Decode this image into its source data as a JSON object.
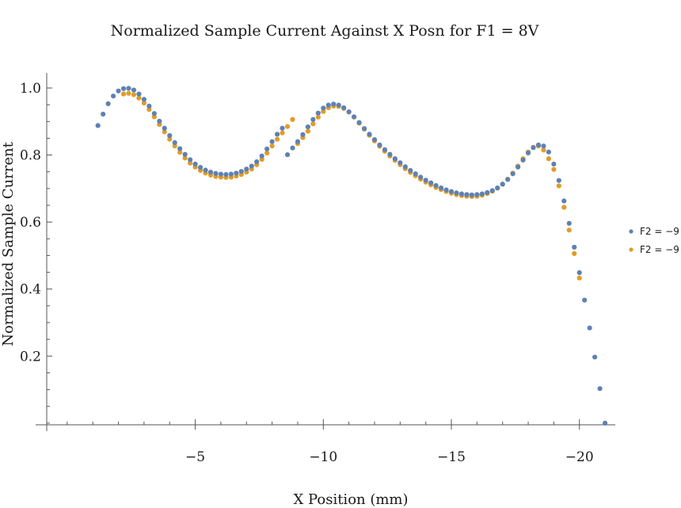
{
  "chart_data": {
    "type": "scatter",
    "title": "Normalized Sample Current Against X Posn for F1 = 8V",
    "xlabel": "X Position (mm)",
    "ylabel": "Normalized Sample Current",
    "xlim": [
      0.8,
      -21.4
    ],
    "ylim": [
      -0.005,
      1.045
    ],
    "xticks": [
      {
        "value": -5,
        "label": "−5"
      },
      {
        "value": -10,
        "label": "−10"
      },
      {
        "value": -15,
        "label": "−15"
      },
      {
        "value": -20,
        "label": "−20"
      }
    ],
    "yticks": [
      {
        "value": 0.2,
        "label": "0.2"
      },
      {
        "value": 0.4,
        "label": "0.4"
      },
      {
        "value": 0.6,
        "label": "0.6"
      },
      {
        "value": 0.8,
        "label": "0.8"
      },
      {
        "value": 1.0,
        "label": "1.0"
      }
    ],
    "grid": false,
    "legend_position": "right",
    "series": [
      {
        "name": "F2 = −9",
        "color": "#5E81B5",
        "points": [
          [
            -1.2,
            0.888
          ],
          [
            -1.4,
            0.922
          ],
          [
            -1.6,
            0.953
          ],
          [
            -1.8,
            0.976
          ],
          [
            -2.0,
            0.991
          ],
          [
            -2.2,
            0.998
          ],
          [
            -2.4,
            0.999
          ],
          [
            -2.6,
            0.994
          ],
          [
            -2.8,
            0.982
          ],
          [
            -3.0,
            0.966
          ],
          [
            -3.2,
            0.946
          ],
          [
            -3.4,
            0.924
          ],
          [
            -3.6,
            0.901
          ],
          [
            -3.8,
            0.88
          ],
          [
            -4.0,
            0.858
          ],
          [
            -4.2,
            0.837
          ],
          [
            -4.4,
            0.819
          ],
          [
            -4.6,
            0.802
          ],
          [
            -4.8,
            0.786
          ],
          [
            -5.0,
            0.773
          ],
          [
            -5.2,
            0.763
          ],
          [
            -5.4,
            0.755
          ],
          [
            -5.6,
            0.749
          ],
          [
            -5.8,
            0.745
          ],
          [
            -6.0,
            0.743
          ],
          [
            -6.2,
            0.742
          ],
          [
            -6.4,
            0.743
          ],
          [
            -6.6,
            0.746
          ],
          [
            -6.8,
            0.751
          ],
          [
            -7.0,
            0.758
          ],
          [
            -7.2,
            0.767
          ],
          [
            -7.4,
            0.78
          ],
          [
            -7.6,
            0.797
          ],
          [
            -7.8,
            0.818
          ],
          [
            -8.0,
            0.84
          ],
          [
            -8.2,
            0.862
          ],
          [
            -8.4,
            0.88
          ],
          [
            -8.6,
            0.801
          ],
          [
            -8.8,
            0.821
          ],
          [
            -9.0,
            0.84
          ],
          [
            -9.2,
            0.861
          ],
          [
            -9.4,
            0.884
          ],
          [
            -9.6,
            0.906
          ],
          [
            -9.8,
            0.925
          ],
          [
            -10.0,
            0.94
          ],
          [
            -10.2,
            0.949
          ],
          [
            -10.4,
            0.952
          ],
          [
            -10.6,
            0.949
          ],
          [
            -10.8,
            0.941
          ],
          [
            -11.0,
            0.929
          ],
          [
            -11.2,
            0.914
          ],
          [
            -11.4,
            0.897
          ],
          [
            -11.6,
            0.879
          ],
          [
            -11.8,
            0.862
          ],
          [
            -12.0,
            0.846
          ],
          [
            -12.2,
            0.83
          ],
          [
            -12.4,
            0.816
          ],
          [
            -12.6,
            0.802
          ],
          [
            -12.8,
            0.789
          ],
          [
            -13.0,
            0.777
          ],
          [
            -13.2,
            0.765
          ],
          [
            -13.4,
            0.754
          ],
          [
            -13.6,
            0.744
          ],
          [
            -13.8,
            0.734
          ],
          [
            -14.0,
            0.725
          ],
          [
            -14.2,
            0.717
          ],
          [
            -14.4,
            0.709
          ],
          [
            -14.6,
            0.702
          ],
          [
            -14.8,
            0.696
          ],
          [
            -15.0,
            0.691
          ],
          [
            -15.2,
            0.687
          ],
          [
            -15.4,
            0.684
          ],
          [
            -15.6,
            0.682
          ],
          [
            -15.8,
            0.681
          ],
          [
            -16.0,
            0.682
          ],
          [
            -16.2,
            0.684
          ],
          [
            -16.4,
            0.688
          ],
          [
            -16.6,
            0.694
          ],
          [
            -16.8,
            0.702
          ],
          [
            -17.0,
            0.713
          ],
          [
            -17.2,
            0.727
          ],
          [
            -17.4,
            0.744
          ],
          [
            -17.6,
            0.764
          ],
          [
            -17.8,
            0.785
          ],
          [
            -18.0,
            0.806
          ],
          [
            -18.2,
            0.822
          ],
          [
            -18.4,
            0.83
          ],
          [
            -18.6,
            0.827
          ],
          [
            -18.8,
            0.809
          ],
          [
            -19.0,
            0.773
          ],
          [
            -19.2,
            0.724
          ],
          [
            -19.4,
            0.663
          ],
          [
            -19.6,
            0.596
          ],
          [
            -19.8,
            0.525
          ],
          [
            -20.0,
            0.449
          ],
          [
            -20.2,
            0.367
          ],
          [
            -20.4,
            0.284
          ],
          [
            -20.6,
            0.197
          ],
          [
            -20.8,
            0.103
          ],
          [
            -21.0,
            0.0
          ]
        ]
      },
      {
        "name": "F2 = −9",
        "color": "#E19C24",
        "points": [
          [
            -2.2,
            0.982
          ],
          [
            -2.4,
            0.984
          ],
          [
            -2.6,
            0.98
          ],
          [
            -2.8,
            0.97
          ],
          [
            -3.0,
            0.955
          ],
          [
            -3.2,
            0.936
          ],
          [
            -3.4,
            0.914
          ],
          [
            -3.6,
            0.891
          ],
          [
            -3.8,
            0.869
          ],
          [
            -4.0,
            0.847
          ],
          [
            -4.2,
            0.827
          ],
          [
            -4.4,
            0.808
          ],
          [
            -4.6,
            0.791
          ],
          [
            -4.8,
            0.776
          ],
          [
            -5.0,
            0.764
          ],
          [
            -5.2,
            0.754
          ],
          [
            -5.4,
            0.746
          ],
          [
            -5.6,
            0.74
          ],
          [
            -5.8,
            0.736
          ],
          [
            -6.0,
            0.734
          ],
          [
            -6.2,
            0.733
          ],
          [
            -6.4,
            0.734
          ],
          [
            -6.6,
            0.737
          ],
          [
            -6.8,
            0.742
          ],
          [
            -7.0,
            0.749
          ],
          [
            -7.2,
            0.758
          ],
          [
            -7.4,
            0.771
          ],
          [
            -7.6,
            0.787
          ],
          [
            -7.8,
            0.806
          ],
          [
            -8.0,
            0.827
          ],
          [
            -8.2,
            0.847
          ],
          [
            -8.4,
            0.866
          ],
          [
            -8.6,
            0.885
          ],
          [
            -8.8,
            0.906
          ],
          [
            -9.0,
            0.834
          ],
          [
            -9.2,
            0.852
          ],
          [
            -9.4,
            0.871
          ],
          [
            -9.6,
            0.893
          ],
          [
            -9.8,
            0.913
          ],
          [
            -10.0,
            0.93
          ],
          [
            -10.2,
            0.941
          ],
          [
            -10.4,
            0.946
          ],
          [
            -10.6,
            0.945
          ],
          [
            -10.8,
            0.939
          ],
          [
            -11.0,
            0.928
          ],
          [
            -11.2,
            0.913
          ],
          [
            -11.4,
            0.895
          ],
          [
            -11.6,
            0.877
          ],
          [
            -11.8,
            0.859
          ],
          [
            -12.0,
            0.842
          ],
          [
            -12.2,
            0.826
          ],
          [
            -12.4,
            0.811
          ],
          [
            -12.6,
            0.797
          ],
          [
            -12.8,
            0.784
          ],
          [
            -13.0,
            0.771
          ],
          [
            -13.2,
            0.759
          ],
          [
            -13.4,
            0.748
          ],
          [
            -13.6,
            0.738
          ],
          [
            -13.8,
            0.728
          ],
          [
            -14.0,
            0.719
          ],
          [
            -14.2,
            0.711
          ],
          [
            -14.4,
            0.703
          ],
          [
            -14.6,
            0.697
          ],
          [
            -14.8,
            0.691
          ],
          [
            -15.0,
            0.686
          ],
          [
            -15.2,
            0.682
          ],
          [
            -15.4,
            0.679
          ],
          [
            -15.6,
            0.677
          ],
          [
            -15.8,
            0.676
          ],
          [
            -16.0,
            0.677
          ],
          [
            -16.2,
            0.68
          ],
          [
            -16.4,
            0.685
          ],
          [
            -16.6,
            0.692
          ],
          [
            -16.8,
            0.701
          ],
          [
            -17.0,
            0.713
          ],
          [
            -17.2,
            0.728
          ],
          [
            -17.4,
            0.746
          ],
          [
            -17.6,
            0.767
          ],
          [
            -17.8,
            0.789
          ],
          [
            -18.0,
            0.809
          ],
          [
            -18.2,
            0.823
          ],
          [
            -18.4,
            0.827
          ],
          [
            -18.6,
            0.815
          ],
          [
            -18.8,
            0.789
          ],
          [
            -19.0,
            0.757
          ],
          [
            -19.2,
            0.708
          ],
          [
            -19.4,
            0.644
          ],
          [
            -19.6,
            0.576
          ],
          [
            -19.8,
            0.506
          ],
          [
            -20.0,
            0.433
          ]
        ]
      }
    ]
  }
}
